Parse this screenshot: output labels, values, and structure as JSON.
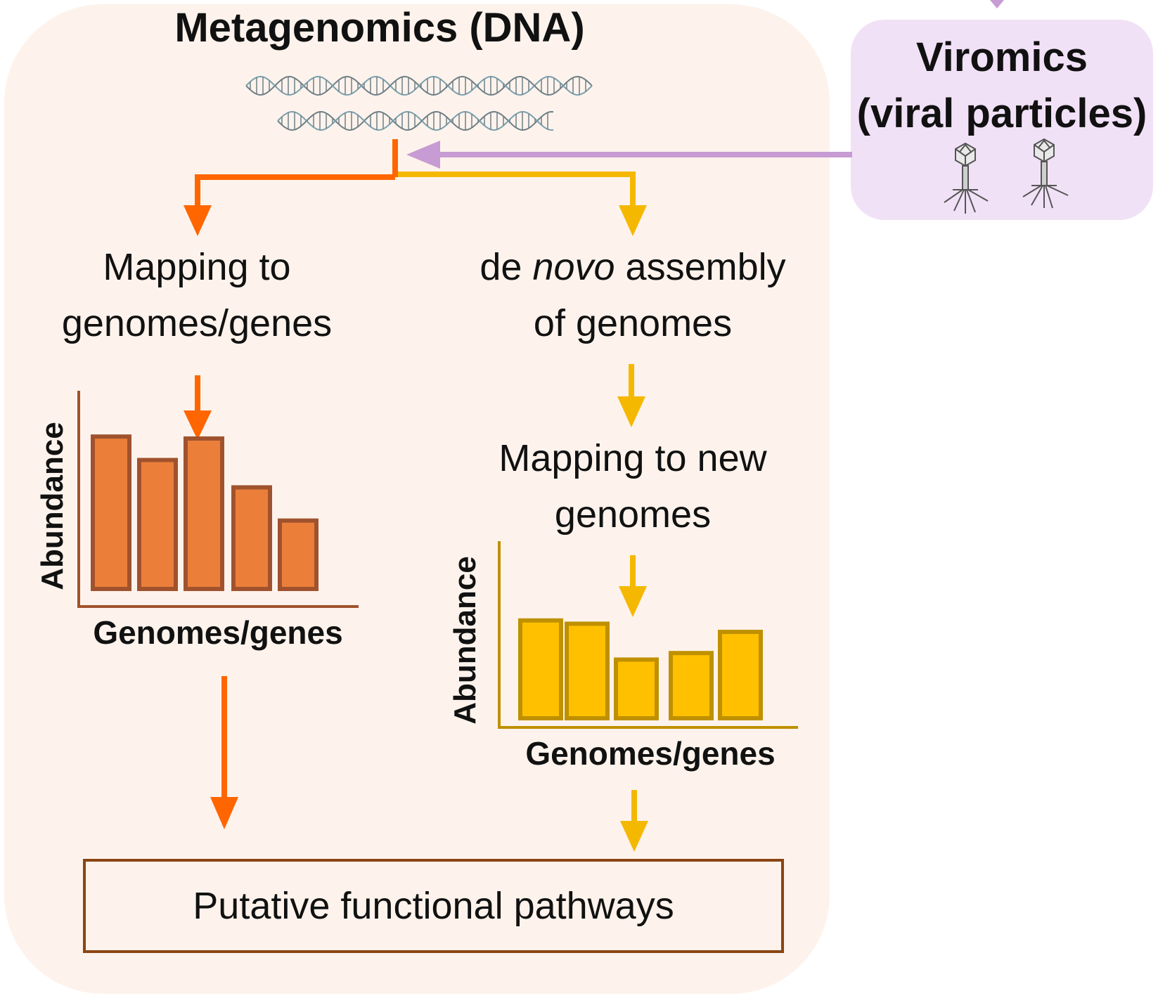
{
  "metagenomics": {
    "title": "Metagenomics (DNA)"
  },
  "viromics": {
    "title_line1": "Viromics",
    "title_line2": "(viral particles)"
  },
  "left_branch": {
    "step_line1": "Mapping to",
    "step_line2": "genomes/genes",
    "color": "#FF6600"
  },
  "right_branch": {
    "step_line1_pre": "de ",
    "step_line1_em": "novo",
    "step_line1_post": " assembly",
    "step_line2": "of genomes",
    "step2_line1": "Mapping to new",
    "step2_line2": "genomes",
    "color": "#F5B800"
  },
  "result": {
    "label": "Putative functional pathways"
  },
  "chart_data": [
    {
      "type": "bar",
      "xlabel": "Genomes/genes",
      "ylabel": "Abundance",
      "values": [
        0.78,
        0.66,
        0.77,
        0.52,
        0.35
      ],
      "ylim": [
        0,
        1
      ],
      "fill": "#EB7F3A",
      "stroke": "#A0522D"
    },
    {
      "type": "bar",
      "xlabel": "Genomes/genes",
      "ylabel": "Abundance",
      "values": [
        0.6,
        0.58,
        0.36,
        0.4,
        0.53
      ],
      "ylim": [
        0,
        1
      ],
      "fill": "#FFC000",
      "stroke": "#BF9000"
    }
  ],
  "colors": {
    "panel_bg": "#FDF3EC",
    "viromics_bg": "#F1E1F7",
    "viromics_arrow": "#C79BD3",
    "result_border": "#8B4513"
  },
  "icons": [
    "dna-helix-icon",
    "bacteriophage-icon"
  ]
}
